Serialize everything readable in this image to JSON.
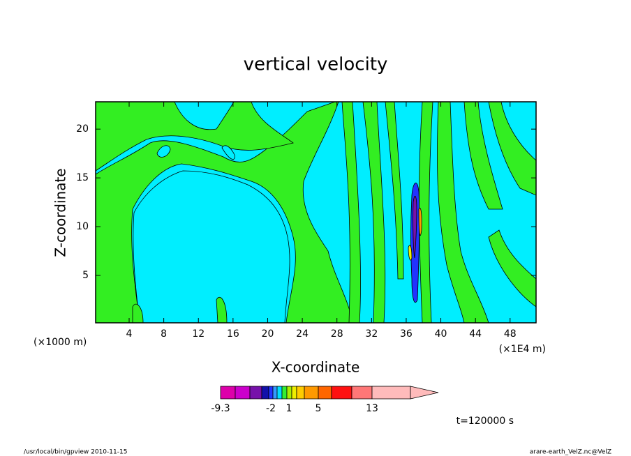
{
  "chart_data": {
    "type": "contour",
    "title": "vertical velocity",
    "xlabel": "X-coordinate",
    "ylabel": "Z-coordinate",
    "x_unit_left": "(×1000 m)",
    "x_unit_right": "(×1E4 m)",
    "xlim": [
      0.13,
      51
    ],
    "ylim": [
      0.14,
      22.8
    ],
    "xticks": [
      4,
      8,
      12,
      16,
      20,
      24,
      28,
      32,
      36,
      40,
      44,
      48
    ],
    "yticks": [
      5,
      10,
      15,
      20
    ],
    "colorbar_colors": [
      "#dd00aa",
      "#cc00cc",
      "#7711aa",
      "#1111aa",
      "#2233ff",
      "#3399ff",
      "#00ddff",
      "#33ee33",
      "#aaee00",
      "#eeee00",
      "#ffcc00",
      "#ff9900",
      "#ff6600",
      "#ff1111",
      "#ff7777",
      "#ffbbbb",
      "#ffbbbb"
    ],
    "colorbar_levels": [
      -9.3,
      null,
      null,
      null,
      -2,
      null,
      null,
      1,
      null,
      null,
      null,
      null,
      5,
      null,
      null,
      13,
      null
    ],
    "time_label": "t=120000 s",
    "footer_left": "/usr/local/bin/gpview   2010-11-15",
    "footer_right": "arare-earth_VelZ.nc@VelZ"
  }
}
